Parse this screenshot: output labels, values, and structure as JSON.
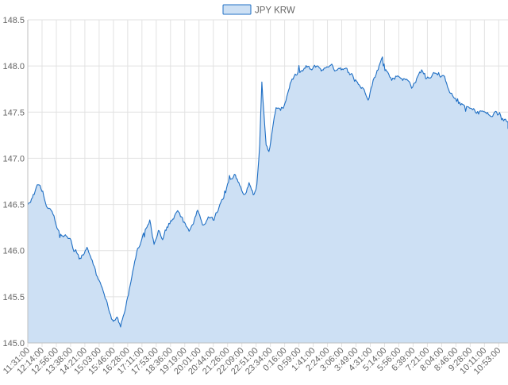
{
  "colors": {
    "line": "#1f6fc4",
    "fill": "#cde0f4",
    "grid": "#e2e2e2",
    "axis": "#bfbfbf",
    "text": "#666666"
  },
  "chart_data": {
    "type": "area",
    "title": "",
    "xlabel": "",
    "ylabel": "",
    "grid": true,
    "legend_position": "top-center",
    "ylim": [
      145.0,
      148.5
    ],
    "yticks": [
      145.0,
      145.5,
      146.0,
      146.5,
      147.0,
      147.5,
      148.0,
      148.5
    ],
    "ytick_labels": [
      "145.0",
      "145.5",
      "146.0",
      "146.5",
      "147.0",
      "147.5",
      "148.0",
      "148.5"
    ],
    "x_labels": [
      "11:31:00",
      "12:14:00",
      "12:56:00",
      "13:38:00",
      "14:21:00",
      "15:03:00",
      "15:46:00",
      "16:28:00",
      "17:11:00",
      "17:53:00",
      "18:36:00",
      "19:19:00",
      "20:01:00",
      "20:44:00",
      "21:26:00",
      "22:09:00",
      "22:51:00",
      "23:34:00",
      "0:16:00",
      "0:59:00",
      "1:41:00",
      "2:24:00",
      "3:06:00",
      "3:49:00",
      "4:31:00",
      "5:14:00",
      "5:56:00",
      "6:39:00",
      "7:21:00",
      "8:04:00",
      "8:46:00",
      "9:28:00",
      "10:11:00",
      "10:53:00"
    ],
    "series": [
      {
        "name": "JPY KRW",
        "anchors": [
          [
            0,
            146.48
          ],
          [
            0.45,
            146.62
          ],
          [
            0.8,
            146.72
          ],
          [
            1.05,
            146.66
          ],
          [
            1.3,
            146.52
          ],
          [
            1.7,
            146.38
          ],
          [
            2.05,
            146.25
          ],
          [
            2.5,
            146.18
          ],
          [
            2.9,
            146.12
          ],
          [
            3.3,
            146.0
          ],
          [
            3.6,
            145.9
          ],
          [
            3.85,
            145.95
          ],
          [
            4.15,
            146.05
          ],
          [
            4.45,
            145.95
          ],
          [
            4.8,
            145.75
          ],
          [
            5.15,
            145.6
          ],
          [
            5.5,
            145.45
          ],
          [
            5.8,
            145.25
          ],
          [
            6.0,
            145.2
          ],
          [
            6.25,
            145.3
          ],
          [
            6.5,
            145.18
          ],
          [
            6.75,
            145.35
          ],
          [
            7.05,
            145.55
          ],
          [
            7.35,
            145.75
          ],
          [
            7.7,
            146.0
          ],
          [
            8.05,
            146.12
          ],
          [
            8.35,
            146.25
          ],
          [
            8.55,
            146.32
          ],
          [
            8.85,
            146.05
          ],
          [
            9.15,
            146.2
          ],
          [
            9.45,
            146.15
          ],
          [
            9.75,
            146.25
          ],
          [
            10.15,
            146.35
          ],
          [
            10.5,
            146.4
          ],
          [
            10.9,
            146.3
          ],
          [
            11.3,
            146.22
          ],
          [
            11.6,
            146.3
          ],
          [
            11.9,
            146.42
          ],
          [
            12.25,
            146.3
          ],
          [
            12.65,
            146.35
          ],
          [
            13.05,
            146.32
          ],
          [
            13.4,
            146.45
          ],
          [
            13.8,
            146.6
          ],
          [
            14.2,
            146.78
          ],
          [
            14.55,
            146.85
          ],
          [
            14.85,
            146.7
          ],
          [
            15.2,
            146.62
          ],
          [
            15.5,
            146.75
          ],
          [
            15.8,
            146.6
          ],
          [
            16.05,
            146.72
          ],
          [
            16.25,
            147.15
          ],
          [
            16.4,
            147.8
          ],
          [
            16.55,
            147.45
          ],
          [
            16.7,
            147.15
          ],
          [
            16.9,
            147.1
          ],
          [
            17.15,
            147.3
          ],
          [
            17.4,
            147.55
          ],
          [
            17.65,
            147.5
          ],
          [
            17.9,
            147.55
          ],
          [
            18.15,
            147.68
          ],
          [
            18.45,
            147.85
          ],
          [
            18.8,
            147.9
          ],
          [
            19.2,
            147.93
          ],
          [
            19.5,
            147.98
          ],
          [
            19.9,
            147.95
          ],
          [
            20.3,
            148.0
          ],
          [
            20.7,
            147.95
          ],
          [
            21.1,
            148.02
          ],
          [
            21.5,
            147.97
          ],
          [
            21.9,
            148.0
          ],
          [
            22.3,
            147.95
          ],
          [
            22.7,
            147.9
          ],
          [
            23.1,
            147.82
          ],
          [
            23.5,
            147.75
          ],
          [
            23.85,
            147.68
          ],
          [
            24.2,
            147.85
          ],
          [
            24.55,
            147.98
          ],
          [
            24.85,
            148.08
          ],
          [
            25.15,
            147.95
          ],
          [
            25.5,
            147.85
          ],
          [
            25.85,
            147.9
          ],
          [
            26.2,
            147.88
          ],
          [
            26.55,
            147.85
          ],
          [
            26.9,
            147.78
          ],
          [
            27.25,
            147.86
          ],
          [
            27.6,
            147.95
          ],
          [
            27.95,
            147.88
          ],
          [
            28.3,
            147.92
          ],
          [
            28.65,
            147.95
          ],
          [
            29.0,
            147.9
          ],
          [
            29.35,
            147.82
          ],
          [
            29.7,
            147.7
          ],
          [
            30.05,
            147.62
          ],
          [
            30.4,
            147.58
          ],
          [
            30.75,
            147.55
          ],
          [
            31.1,
            147.52
          ],
          [
            31.45,
            147.5
          ],
          [
            31.8,
            147.52
          ],
          [
            32.15,
            147.48
          ],
          [
            32.5,
            147.45
          ],
          [
            32.85,
            147.5
          ],
          [
            33.2,
            147.42
          ],
          [
            33.55,
            147.4
          ],
          [
            33.9,
            147.38
          ],
          [
            34.2,
            147.37
          ]
        ]
      }
    ]
  }
}
